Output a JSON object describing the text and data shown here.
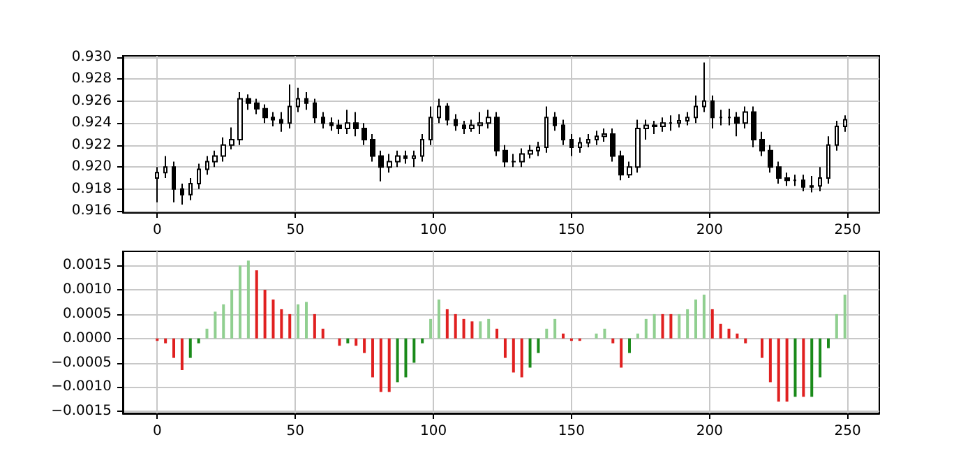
{
  "chart_data": [
    {
      "type": "candlestick",
      "color": "#000000",
      "grid": true,
      "x": [
        0,
        3,
        6,
        9,
        12,
        15,
        18,
        21,
        24,
        27,
        30,
        33,
        36,
        39,
        42,
        45,
        48,
        51,
        54,
        57,
        60,
        63,
        66,
        69,
        72,
        75,
        78,
        81,
        84,
        87,
        90,
        93,
        96,
        99,
        102,
        105,
        108,
        111,
        114,
        117,
        120,
        123,
        126,
        129,
        132,
        135,
        138,
        141,
        144,
        147,
        150,
        153,
        156,
        159,
        162,
        165,
        168,
        171,
        174,
        177,
        180,
        183,
        186,
        189,
        192,
        195,
        198,
        201,
        204,
        207,
        210,
        213,
        216,
        219,
        222,
        225,
        228,
        231,
        234,
        237,
        240,
        243,
        246,
        249
      ],
      "ohlc": [
        [
          0.919,
          0.92,
          0.9168,
          0.9195
        ],
        [
          0.9195,
          0.921,
          0.919,
          0.92
        ],
        [
          0.92,
          0.9205,
          0.9168,
          0.918
        ],
        [
          0.918,
          0.9185,
          0.9166,
          0.9175
        ],
        [
          0.9175,
          0.919,
          0.917,
          0.9185
        ],
        [
          0.9185,
          0.9203,
          0.918,
          0.9198
        ],
        [
          0.9198,
          0.921,
          0.9193,
          0.9205
        ],
        [
          0.9205,
          0.9215,
          0.92,
          0.921
        ],
        [
          0.921,
          0.9227,
          0.9205,
          0.922
        ],
        [
          0.922,
          0.9236,
          0.9216,
          0.9225
        ],
        [
          0.9225,
          0.9268,
          0.922,
          0.9262
        ],
        [
          0.9262,
          0.9266,
          0.9252,
          0.9258
        ],
        [
          0.9258,
          0.9262,
          0.9248,
          0.9253
        ],
        [
          0.9253,
          0.9257,
          0.924,
          0.9245
        ],
        [
          0.9245,
          0.925,
          0.9237,
          0.9243
        ],
        [
          0.9243,
          0.925,
          0.9232,
          0.924
        ],
        [
          0.924,
          0.9275,
          0.9235,
          0.9255
        ],
        [
          0.9255,
          0.9272,
          0.925,
          0.9262
        ],
        [
          0.9262,
          0.9268,
          0.9252,
          0.9258
        ],
        [
          0.9258,
          0.9262,
          0.924,
          0.9245
        ],
        [
          0.9245,
          0.925,
          0.9235,
          0.924
        ],
        [
          0.924,
          0.9245,
          0.9233,
          0.9238
        ],
        [
          0.9238,
          0.9243,
          0.923,
          0.9235
        ],
        [
          0.9235,
          0.9252,
          0.923,
          0.924
        ],
        [
          0.924,
          0.925,
          0.9228,
          0.9235
        ],
        [
          0.9235,
          0.924,
          0.922,
          0.9225
        ],
        [
          0.9225,
          0.923,
          0.9205,
          0.921
        ],
        [
          0.921,
          0.9215,
          0.9187,
          0.92
        ],
        [
          0.92,
          0.9212,
          0.9195,
          0.9205
        ],
        [
          0.9205,
          0.9215,
          0.92,
          0.921
        ],
        [
          0.921,
          0.9215,
          0.9203,
          0.9208
        ],
        [
          0.9208,
          0.9215,
          0.92,
          0.921
        ],
        [
          0.921,
          0.923,
          0.9205,
          0.9225
        ],
        [
          0.9225,
          0.9255,
          0.922,
          0.9245
        ],
        [
          0.9245,
          0.9262,
          0.924,
          0.9255
        ],
        [
          0.9255,
          0.9258,
          0.9238,
          0.9243
        ],
        [
          0.9243,
          0.9248,
          0.9233,
          0.9238
        ],
        [
          0.9238,
          0.9242,
          0.923,
          0.9235
        ],
        [
          0.9235,
          0.9243,
          0.9232,
          0.9238
        ],
        [
          0.9238,
          0.925,
          0.923,
          0.924
        ],
        [
          0.924,
          0.9252,
          0.9235,
          0.9245
        ],
        [
          0.9245,
          0.925,
          0.921,
          0.9215
        ],
        [
          0.9215,
          0.922,
          0.92,
          0.9205
        ],
        [
          0.9205,
          0.9212,
          0.92,
          0.9205
        ],
        [
          0.9205,
          0.9217,
          0.92,
          0.9212
        ],
        [
          0.9212,
          0.922,
          0.9208,
          0.9215
        ],
        [
          0.9215,
          0.9223,
          0.921,
          0.9218
        ],
        [
          0.9218,
          0.9255,
          0.9213,
          0.9245
        ],
        [
          0.9245,
          0.925,
          0.9233,
          0.9238
        ],
        [
          0.9238,
          0.9243,
          0.922,
          0.9225
        ],
        [
          0.9225,
          0.923,
          0.921,
          0.9218
        ],
        [
          0.9218,
          0.9227,
          0.9213,
          0.9222
        ],
        [
          0.9222,
          0.923,
          0.9218,
          0.9225
        ],
        [
          0.9225,
          0.9233,
          0.922,
          0.9228
        ],
        [
          0.9228,
          0.9235,
          0.9223,
          0.923
        ],
        [
          0.923,
          0.9235,
          0.9205,
          0.921
        ],
        [
          0.921,
          0.9215,
          0.9188,
          0.9193
        ],
        [
          0.9193,
          0.9205,
          0.919,
          0.92
        ],
        [
          0.92,
          0.9243,
          0.9195,
          0.9235
        ],
        [
          0.9235,
          0.9243,
          0.9225,
          0.9238
        ],
        [
          0.9238,
          0.9242,
          0.923,
          0.9237
        ],
        [
          0.9237,
          0.9245,
          0.9232,
          0.924
        ],
        [
          0.924,
          0.9247,
          0.9233,
          0.924
        ],
        [
          0.924,
          0.9248,
          0.9236,
          0.9242
        ],
        [
          0.9242,
          0.925,
          0.9238,
          0.9245
        ],
        [
          0.9245,
          0.9265,
          0.924,
          0.9255
        ],
        [
          0.9255,
          0.9295,
          0.925,
          0.926
        ],
        [
          0.926,
          0.9265,
          0.9235,
          0.9245
        ],
        [
          0.9245,
          0.9252,
          0.9238,
          0.9245
        ],
        [
          0.9245,
          0.9253,
          0.9238,
          0.9245
        ],
        [
          0.9245,
          0.925,
          0.9228,
          0.924
        ],
        [
          0.924,
          0.9255,
          0.9235,
          0.925
        ],
        [
          0.925,
          0.9255,
          0.9218,
          0.9225
        ],
        [
          0.9225,
          0.9232,
          0.921,
          0.9215
        ],
        [
          0.9215,
          0.922,
          0.9195,
          0.92
        ],
        [
          0.92,
          0.9205,
          0.9185,
          0.919
        ],
        [
          0.919,
          0.9195,
          0.9183,
          0.9188
        ],
        [
          0.9188,
          0.9193,
          0.9183,
          0.9188
        ],
        [
          0.9188,
          0.9193,
          0.9178,
          0.9182
        ],
        [
          0.9182,
          0.9192,
          0.9177,
          0.9183
        ],
        [
          0.9183,
          0.92,
          0.9178,
          0.919
        ],
        [
          0.919,
          0.9228,
          0.9185,
          0.922
        ],
        [
          0.922,
          0.9242,
          0.9215,
          0.9237
        ],
        [
          0.9237,
          0.9247,
          0.9232,
          0.9243
        ]
      ],
      "xlim": [
        -12.45,
        261.45
      ],
      "xticks": [
        0,
        50,
        100,
        150,
        200,
        250
      ],
      "ylim": [
        0.9159,
        0.9301
      ],
      "yticks": [
        {
          "value": 0.916,
          "label": "0.916"
        },
        {
          "value": 0.918,
          "label": "0.918"
        },
        {
          "value": 0.92,
          "label": "0.920"
        },
        {
          "value": 0.922,
          "label": "0.922"
        },
        {
          "value": 0.924,
          "label": "0.924"
        },
        {
          "value": 0.926,
          "label": "0.926"
        },
        {
          "value": 0.928,
          "label": "0.928"
        },
        {
          "value": 0.93,
          "label": "0.930"
        }
      ]
    },
    {
      "type": "bar",
      "grid": true,
      "x": [
        0,
        3,
        6,
        9,
        12,
        15,
        18,
        21,
        24,
        27,
        30,
        33,
        36,
        39,
        42,
        45,
        48,
        51,
        54,
        57,
        60,
        63,
        66,
        69,
        72,
        75,
        78,
        81,
        84,
        87,
        90,
        93,
        96,
        99,
        102,
        105,
        108,
        111,
        114,
        117,
        120,
        123,
        126,
        129,
        132,
        135,
        138,
        141,
        144,
        147,
        150,
        153,
        156,
        159,
        162,
        165,
        168,
        171,
        174,
        177,
        180,
        183,
        186,
        189,
        192,
        195,
        198,
        201,
        204,
        207,
        210,
        213,
        216,
        219,
        222,
        225,
        228,
        231,
        234,
        237,
        240,
        243,
        246,
        249
      ],
      "values": [
        -5e-05,
        -0.0001,
        -0.0004,
        -0.00065,
        -0.0004,
        -0.0001,
        0.0002,
        0.00055,
        0.0007,
        0.001,
        0.0015,
        0.0016,
        0.0014,
        0.001,
        0.0008,
        0.0006,
        0.0005,
        0.0007,
        0.00075,
        0.0005,
        0.0002,
        0.0,
        -0.00015,
        -0.0001,
        -0.00015,
        -0.0003,
        -0.0008,
        -0.0011,
        -0.0011,
        -0.0009,
        -0.0008,
        -0.0005,
        -0.0001,
        0.0004,
        0.0008,
        0.0006,
        0.0005,
        0.0004,
        0.00035,
        0.00035,
        0.0004,
        0.0002,
        -0.0004,
        -0.0007,
        -0.0008,
        -0.0006,
        -0.0003,
        0.0002,
        0.0004,
        0.0001,
        -5e-05,
        -5e-05,
        0.0,
        0.0001,
        0.0002,
        -0.0001,
        -0.0006,
        -0.0003,
        0.0001,
        0.0004,
        0.0005,
        0.0005,
        0.0005,
        0.0005,
        0.0006,
        0.0008,
        0.0009,
        0.0006,
        0.0003,
        0.0002,
        0.0001,
        -0.0001,
        0.0,
        -0.0004,
        -0.0009,
        -0.0013,
        -0.0013,
        -0.0012,
        -0.0012,
        -0.0012,
        -0.0008,
        -0.0002,
        0.0005,
        0.0009
      ],
      "colors": [
        "#e02020",
        "#e02020",
        "#e02020",
        "#e02020",
        "#1a8a1a",
        "#1a8a1a",
        "#90cf90",
        "#90cf90",
        "#90cf90",
        "#90cf90",
        "#90cf90",
        "#90cf90",
        "#e02020",
        "#e02020",
        "#e02020",
        "#e02020",
        "#e02020",
        "#90cf90",
        "#90cf90",
        "#e02020",
        "#e02020",
        "#e02020",
        "#e02020",
        "#1a8a1a",
        "#e02020",
        "#e02020",
        "#e02020",
        "#e02020",
        "#e02020",
        "#1a8a1a",
        "#1a8a1a",
        "#1a8a1a",
        "#1a8a1a",
        "#90cf90",
        "#90cf90",
        "#e02020",
        "#e02020",
        "#e02020",
        "#e02020",
        "#90cf90",
        "#90cf90",
        "#e02020",
        "#e02020",
        "#e02020",
        "#e02020",
        "#1a8a1a",
        "#1a8a1a",
        "#90cf90",
        "#90cf90",
        "#e02020",
        "#e02020",
        "#e02020",
        "#1a8a1a",
        "#90cf90",
        "#90cf90",
        "#e02020",
        "#e02020",
        "#1a8a1a",
        "#90cf90",
        "#90cf90",
        "#90cf90",
        "#e02020",
        "#e02020",
        "#90cf90",
        "#90cf90",
        "#90cf90",
        "#90cf90",
        "#e02020",
        "#e02020",
        "#e02020",
        "#e02020",
        "#e02020",
        "#1a8a1a",
        "#e02020",
        "#e02020",
        "#e02020",
        "#e02020",
        "#1a8a1a",
        "#e02020",
        "#1a8a1a",
        "#1a8a1a",
        "#1a8a1a",
        "#90cf90",
        "#90cf90"
      ],
      "xlim": [
        -12.45,
        261.45
      ],
      "xticks": [
        0,
        50,
        100,
        150,
        200,
        250
      ],
      "ylim": [
        -0.00154,
        0.00179
      ],
      "yticks": [
        {
          "value": -0.0015,
          "label": "−0.0015"
        },
        {
          "value": -0.001,
          "label": "−0.0010"
        },
        {
          "value": -0.0005,
          "label": "−0.0005"
        },
        {
          "value": 0,
          "label": "0.0000"
        },
        {
          "value": 0.0005,
          "label": "0.0005"
        },
        {
          "value": 0.001,
          "label": "0.0010"
        },
        {
          "value": 0.0015,
          "label": "0.0015"
        }
      ]
    }
  ]
}
